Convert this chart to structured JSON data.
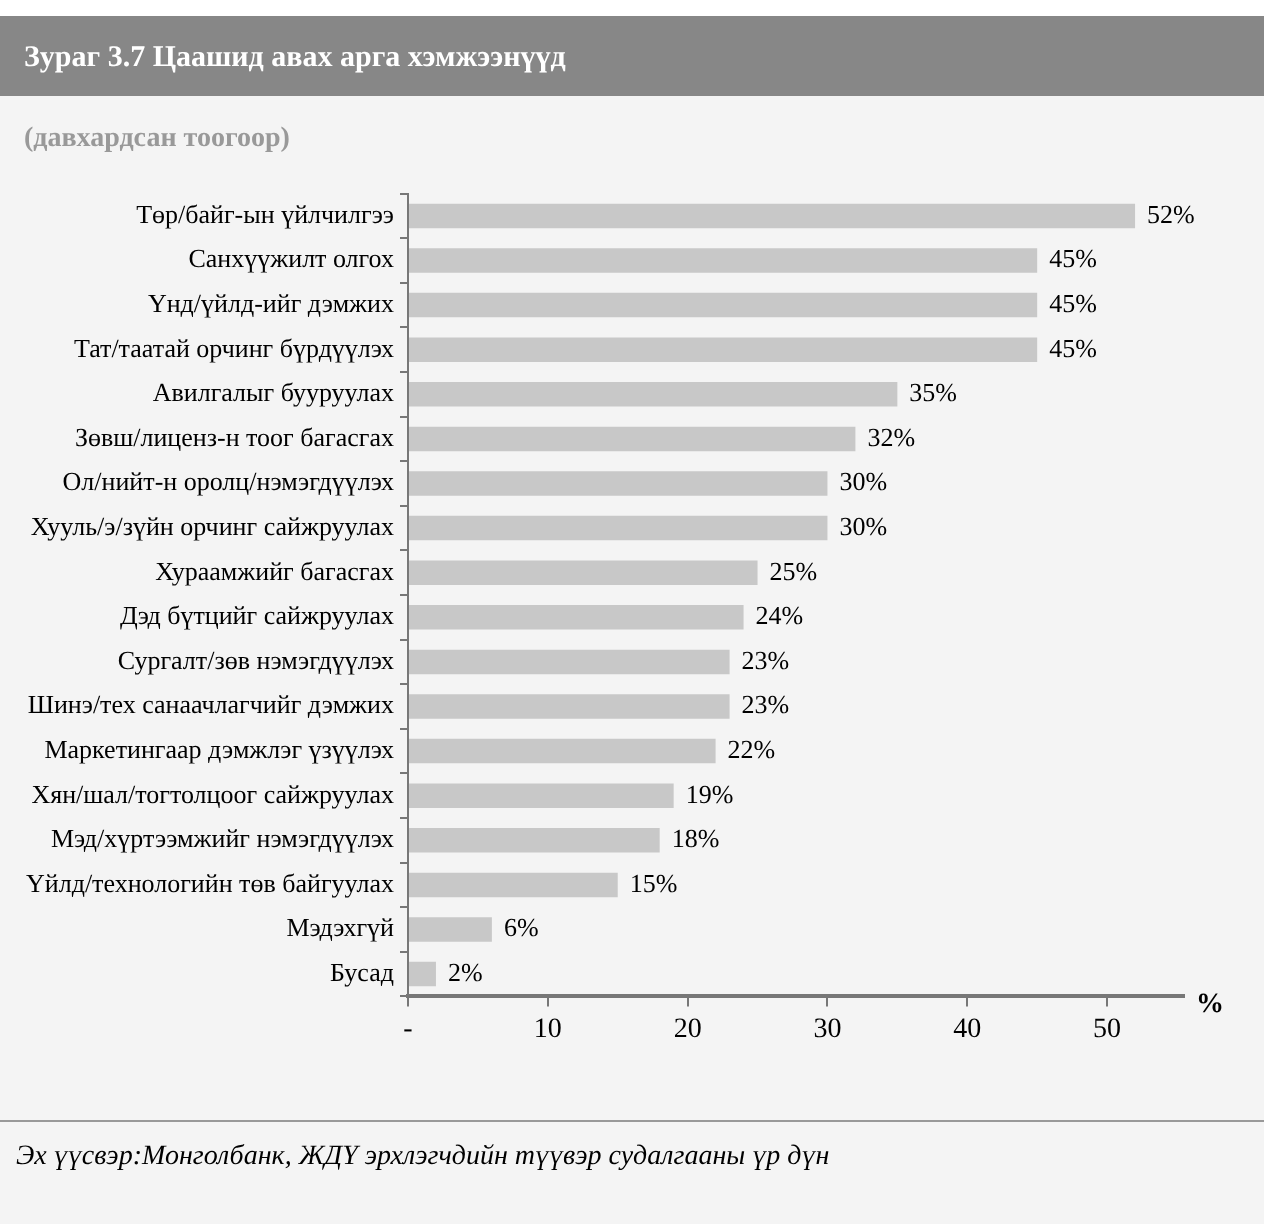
{
  "chart_data": {
    "type": "bar",
    "orientation": "horizontal",
    "title": "Зураг 3.7 Цаашид авах арга хэмжээнүүд",
    "subtitle": "(давхардсан тоогоор)",
    "xlabel": "%",
    "categories": [
      "Төр/байг-ын үйлчилгээ",
      "Санхүүжилт олгох",
      "Үнд/үйлд-ийг дэмжих",
      "Тат/таатай орчинг бүрдүүлэх",
      "Авилгалыг бууруулах",
      "Зөвш/лиценз-н тоог багасгах",
      "Ол/нийт-н оролц/нэмэгдүүлэх",
      "Хууль/э/зүйн орчинг сайжруулах",
      "Хураамжийг багасгах",
      "Дэд бүтцийг сайжруулах",
      "Сургалт/зөв нэмэгдүүлэх",
      "Шинэ/тех санаачлагчийг дэмжих",
      "Маркетингаар дэмжлэг үзүүлэх",
      "Хян/шал/тогтолцоог сайжруулах",
      "Мэд/хүртээмжийг нэмэгдүүлэх",
      "Үйлд/технологийн төв байгуулах",
      "Мэдэхгүй",
      "Бусад"
    ],
    "values": [
      52,
      45,
      45,
      45,
      35,
      32,
      30,
      30,
      25,
      24,
      23,
      23,
      22,
      19,
      18,
      15,
      6,
      2
    ],
    "value_labels": [
      "52%",
      "45%",
      "45%",
      "45%",
      "35%",
      "32%",
      "30%",
      "30%",
      "25%",
      "24%",
      "23%",
      "23%",
      "22%",
      "19%",
      "18%",
      "15%",
      "6%",
      "2%"
    ],
    "color": "#c8c8c8",
    "xlim": [
      0,
      55.5
    ],
    "xticks": [
      {
        "value": 0,
        "label": "-"
      },
      10,
      20,
      30,
      40,
      50
    ],
    "grid": false,
    "legend": false,
    "annotations": [
      "Эх үүсвэр:Монголбанк, ЖДҮ эрхлэгчдийн түүвэр судалгааны үр дүн"
    ]
  }
}
